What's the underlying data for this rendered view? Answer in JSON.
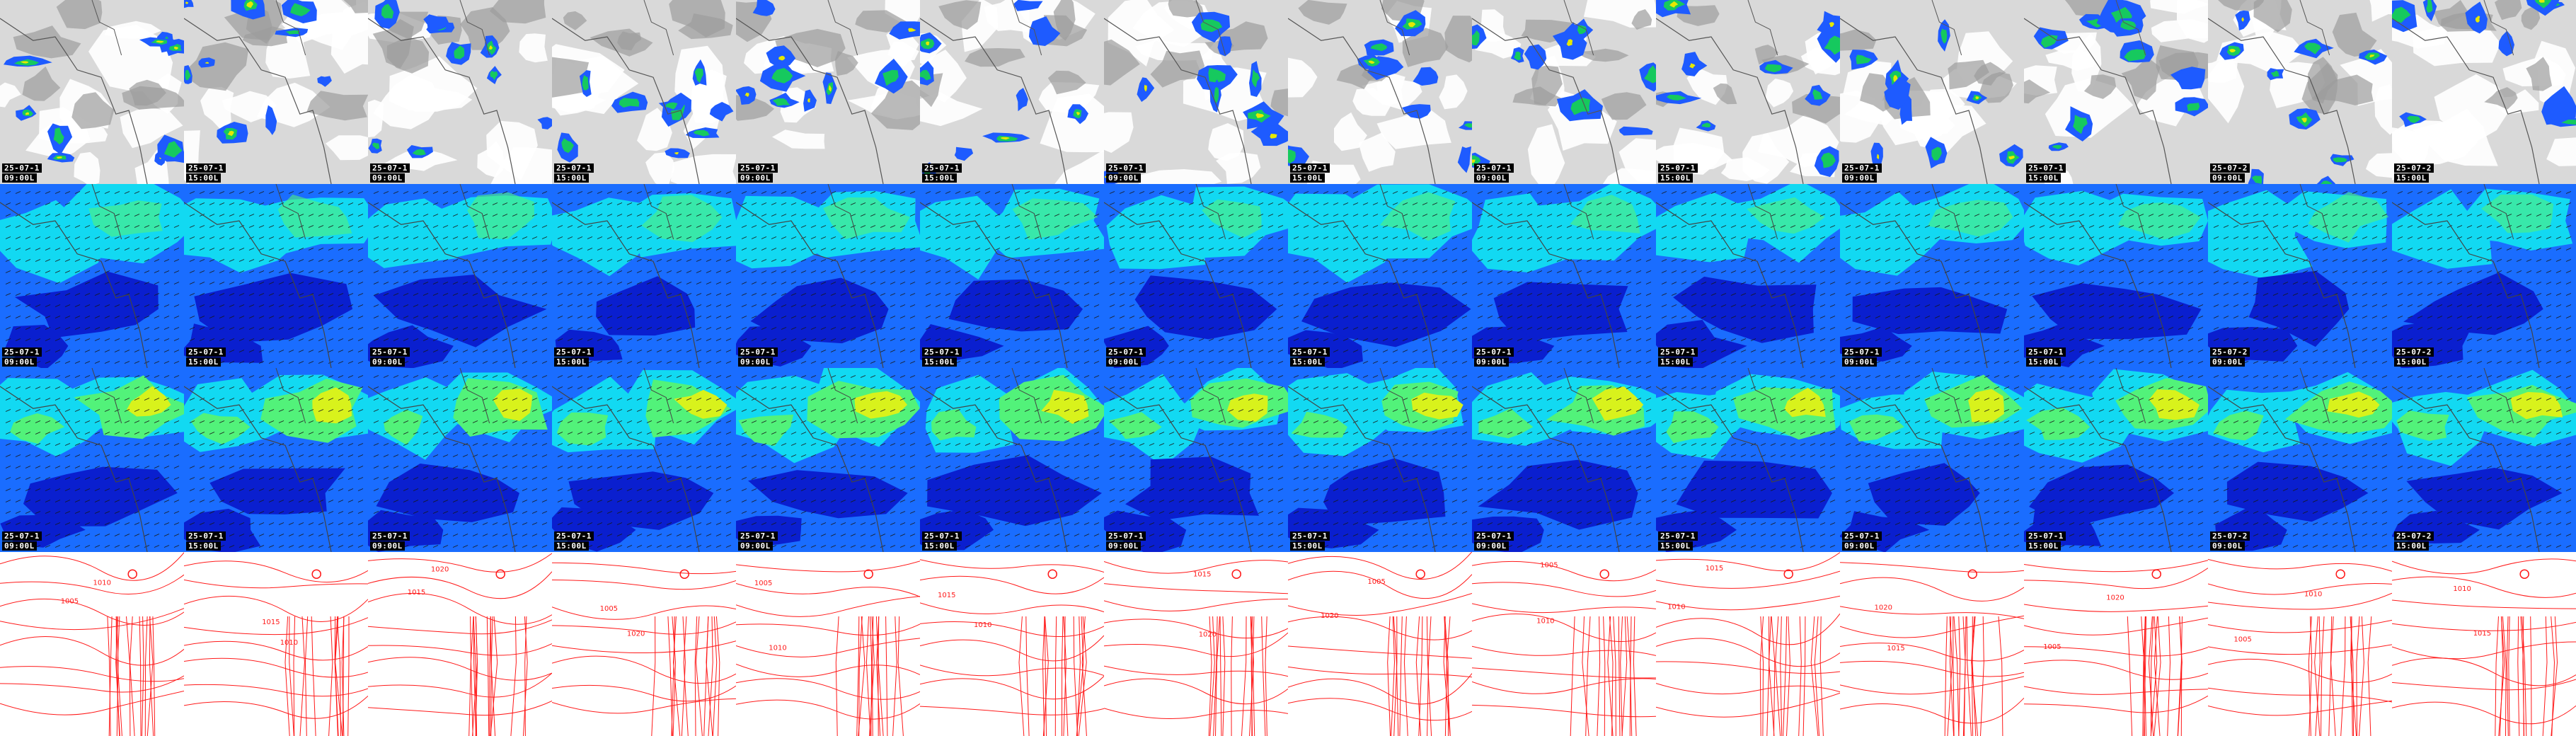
{
  "rows": [
    {
      "name": "cloud-precip-row"
    },
    {
      "name": "wind-low-row"
    },
    {
      "name": "wind-high-row"
    },
    {
      "name": "pressure-isobar-row"
    }
  ],
  "frames": [
    {
      "date": "25-07-1",
      "time": "09:00L"
    },
    {
      "date": "25-07-1",
      "time": "15:00L"
    },
    {
      "date": "25-07-1",
      "time": "09:00L"
    },
    {
      "date": "25-07-1",
      "time": "15:00L"
    },
    {
      "date": "25-07-1",
      "time": "09:00L"
    },
    {
      "date": "25-07-1",
      "time": "15:00L"
    },
    {
      "date": "25-07-1",
      "time": "09:00L"
    },
    {
      "date": "25-07-1",
      "time": "15:00L"
    },
    {
      "date": "25-07-1",
      "time": "09:00L"
    },
    {
      "date": "25-07-1",
      "time": "15:00L"
    },
    {
      "date": "25-07-1",
      "time": "09:00L"
    },
    {
      "date": "25-07-1",
      "time": "15:00L"
    },
    {
      "date": "25-07-2",
      "time": "09:00L"
    },
    {
      "date": "25-07-2",
      "time": "15:00L"
    }
  ],
  "isobar_labels": [
    "1015",
    "1010",
    "1005",
    "1020"
  ],
  "colors": {
    "cloud_bg": "#d9d9d9",
    "cloud_dark": "#9c9c9c",
    "precip_light": "#1e5bff",
    "precip_mid": "#16c95e",
    "precip_high": "#e5e800",
    "wind_deep": "#0a1fcf",
    "wind_mid": "#1a6dff",
    "wind_cyan": "#12d9f2",
    "wind_green": "#52f27a",
    "wind_yellow": "#d8f21c",
    "isobar": "#ff1a1a",
    "coast": "#555555",
    "label_bg": "#000000",
    "label_fg": "#ffffff"
  }
}
